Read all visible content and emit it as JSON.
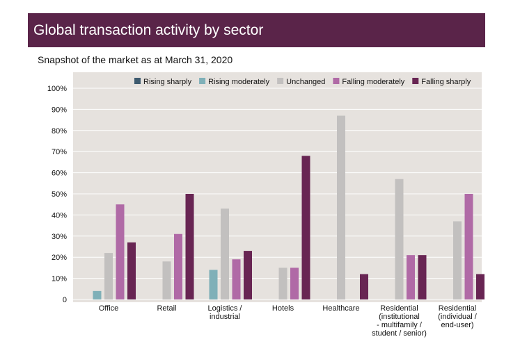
{
  "header": {
    "title": "Global transaction activity by sector",
    "subtitle": "Snapshot of the market as at March 31, 2020"
  },
  "colors": {
    "title_bg": "#5a2449",
    "plot_bg": "#e6e2de",
    "grid": "#ffffff"
  },
  "chart_data": {
    "type": "bar",
    "title": "Global transaction activity by sector",
    "subtitle": "Snapshot of the market as at March 31, 2020",
    "xlabel": "",
    "ylabel": "",
    "ylim": [
      0,
      100
    ],
    "y_ticks": [
      "0",
      "10%",
      "20%",
      "30%",
      "40%",
      "50%",
      "60%",
      "70%",
      "80%",
      "90%",
      "100%"
    ],
    "grid": true,
    "legend_position": "top-right",
    "categories": [
      [
        "Office"
      ],
      [
        "Retail"
      ],
      [
        "Logistics /",
        "industrial"
      ],
      [
        "Hotels"
      ],
      [
        "Healthcare"
      ],
      [
        "Residential",
        "(institutional",
        "- multifamily /",
        "student / senior)"
      ],
      [
        "Residential",
        "(individual /",
        "end-user)"
      ]
    ],
    "series": [
      {
        "name": "Rising sharply",
        "color": "#3d5a6e",
        "values": [
          0,
          0,
          0,
          0,
          0,
          0,
          0
        ]
      },
      {
        "name": "Rising moderately",
        "color": "#7fb0b8",
        "values": [
          4,
          0,
          14,
          0,
          0,
          0,
          0
        ]
      },
      {
        "name": "Unchanged",
        "color": "#c2c0bf",
        "values": [
          22,
          18,
          43,
          15,
          87,
          57,
          37
        ]
      },
      {
        "name": "Falling moderately",
        "color": "#b06aa6",
        "values": [
          45,
          31,
          19,
          15,
          0,
          21,
          50
        ]
      },
      {
        "name": "Falling sharply",
        "color": "#682553",
        "values": [
          27,
          50,
          23,
          68,
          12,
          21,
          12
        ]
      }
    ]
  }
}
